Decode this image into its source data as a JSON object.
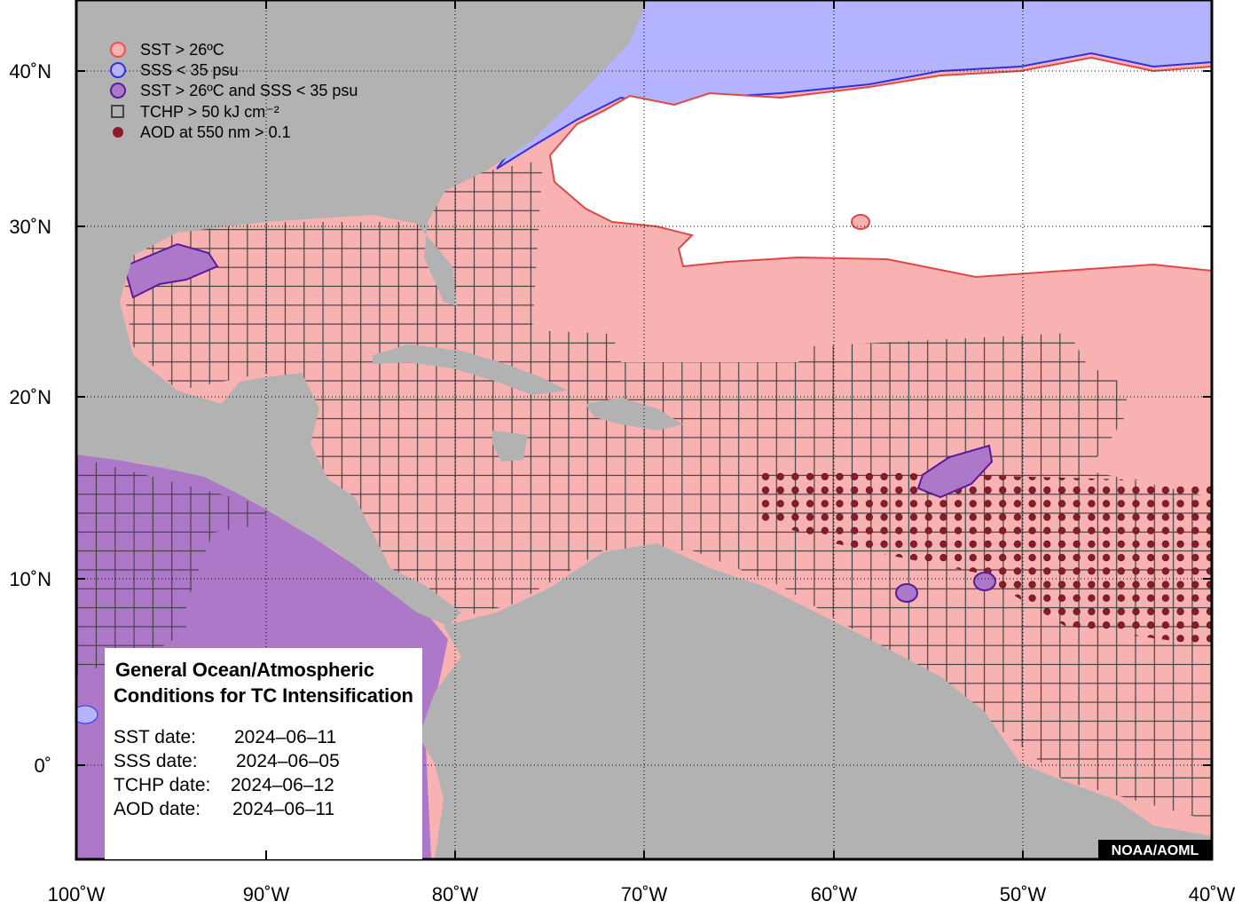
{
  "map": {
    "legend": [
      "SST > 26ºC",
      "SSS < 35 psu",
      "SST > 26ºC and SSS < 35 psu",
      "TCHP > 50 kJ cm⁻²",
      "AOD at 550 nm > 0.1"
    ],
    "info_box": {
      "title_lines": [
        "General Ocean/Atmospheric",
        "Conditions for TC Intensification"
      ],
      "dates": [
        {
          "label": "SST date:",
          "value": "2024–06–11"
        },
        {
          "label": "SSS date:",
          "value": "2024–06–05"
        },
        {
          "label": "TCHP date:",
          "value": "2024–06–12"
        },
        {
          "label": "AOD date:",
          "value": "2024–06–11"
        }
      ]
    },
    "lat_labels": [
      "40˚N",
      "30˚N",
      "20˚N",
      "10˚N",
      "0˚"
    ],
    "lon_labels": [
      "100˚W",
      "90˚W",
      "80˚W",
      "70˚W",
      "60˚W",
      "50˚W",
      "40˚W"
    ],
    "credit": "NOAA/AOML"
  }
}
